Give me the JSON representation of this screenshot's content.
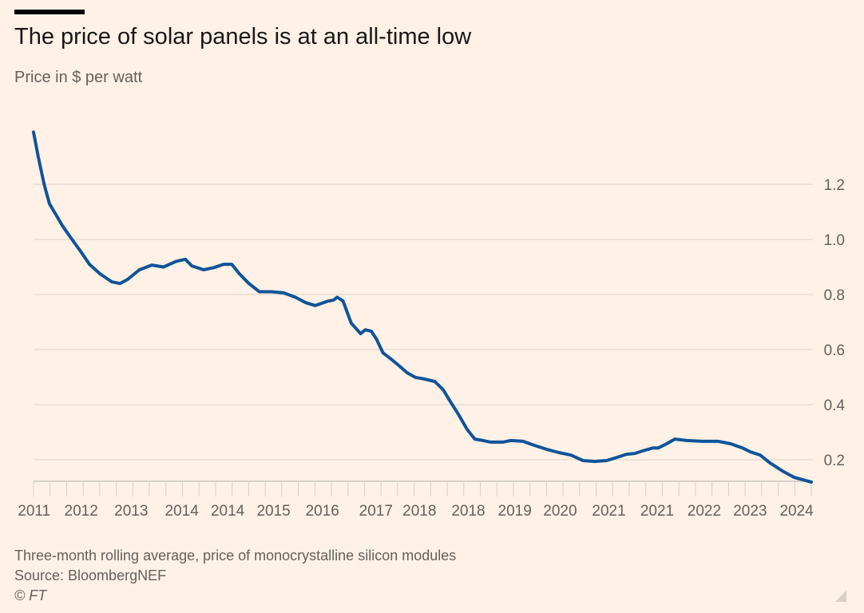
{
  "header": {
    "title": "The price of solar panels is at an all-time low",
    "subtitle": "Price in $ per watt"
  },
  "footer": {
    "note": "Three-month rolling average, price of monocrystalline silicon modules",
    "source": "Source: BloombergNEF",
    "copyright": "© FT"
  },
  "chart_data": {
    "type": "line",
    "title": "The price of solar panels is at an all-time low",
    "ylabel": "Price in $ per watt",
    "xlabel": "",
    "ylim": [
      0.12,
      1.4
    ],
    "xlim": [
      2011.0,
      2024.22
    ],
    "y_ticks": [
      {
        "value": 0.2,
        "label": "0.2"
      },
      {
        "value": 0.4,
        "label": "0.4"
      },
      {
        "value": 0.6,
        "label": "0.6"
      },
      {
        "value": 0.8,
        "label": "0.8"
      },
      {
        "value": 1.0,
        "label": "1.0"
      },
      {
        "value": 1.2,
        "label": "1.2"
      }
    ],
    "x_ticks": [
      {
        "x": 2011.01,
        "label": "2011"
      },
      {
        "x": 2011.81,
        "label": "2012"
      },
      {
        "x": 2012.66,
        "label": "2013"
      },
      {
        "x": 2013.52,
        "label": "2014"
      },
      {
        "x": 2014.3,
        "label": "2014"
      },
      {
        "x": 2015.08,
        "label": "2015"
      },
      {
        "x": 2015.91,
        "label": "2016"
      },
      {
        "x": 2016.82,
        "label": "2017"
      },
      {
        "x": 2017.56,
        "label": "2018"
      },
      {
        "x": 2018.39,
        "label": "2018"
      },
      {
        "x": 2019.18,
        "label": "2019"
      },
      {
        "x": 2019.95,
        "label": "2020"
      },
      {
        "x": 2020.78,
        "label": "2021"
      },
      {
        "x": 2021.6,
        "label": "2021"
      },
      {
        "x": 2022.4,
        "label": "2022"
      },
      {
        "x": 2023.18,
        "label": "2023"
      },
      {
        "x": 2023.97,
        "label": "2024"
      }
    ],
    "grid": true,
    "y_axis_side": "right",
    "series_color": "#0f5499",
    "series": [
      {
        "x": [
          2011.0,
          2011.08,
          2011.18,
          2011.27,
          2011.38,
          2011.49,
          2011.62,
          2011.79,
          2011.95,
          2012.13,
          2012.33,
          2012.47,
          2012.6,
          2012.8,
          2013.01,
          2013.21,
          2013.42,
          2013.58,
          2013.69,
          2013.89,
          2014.07,
          2014.23,
          2014.37,
          2014.5,
          2014.66,
          2014.84,
          2015.04,
          2015.25,
          2015.45,
          2015.63,
          2015.79,
          2015.99,
          2016.1,
          2016.16,
          2016.26,
          2016.4,
          2016.56,
          2016.64,
          2016.74,
          2016.83,
          2016.94,
          2017.08,
          2017.21,
          2017.35,
          2017.49,
          2017.65,
          2017.82,
          2017.96,
          2018.1,
          2018.23,
          2018.37,
          2018.5,
          2018.64,
          2018.77,
          2018.98,
          2019.11,
          2019.32,
          2019.52,
          2019.72,
          2019.93,
          2020.13,
          2020.34,
          2020.54,
          2020.74,
          2020.88,
          2021.08,
          2021.22,
          2021.35,
          2021.53,
          2021.62,
          2021.76,
          2021.9,
          2022.1,
          2022.37,
          2022.64,
          2022.85,
          2023.05,
          2023.18,
          2023.35,
          2023.52,
          2023.73,
          2023.93,
          2024.22
        ],
        "values": [
          1.39,
          1.3,
          1.2,
          1.13,
          1.09,
          1.05,
          1.01,
          0.96,
          0.91,
          0.875,
          0.846,
          0.84,
          0.855,
          0.89,
          0.907,
          0.9,
          0.92,
          0.928,
          0.904,
          0.89,
          0.898,
          0.91,
          0.91,
          0.875,
          0.84,
          0.81,
          0.81,
          0.806,
          0.79,
          0.77,
          0.76,
          0.775,
          0.78,
          0.79,
          0.777,
          0.696,
          0.658,
          0.672,
          0.667,
          0.638,
          0.588,
          0.565,
          0.542,
          0.516,
          0.499,
          0.493,
          0.484,
          0.455,
          0.406,
          0.362,
          0.31,
          0.275,
          0.27,
          0.264,
          0.264,
          0.27,
          0.267,
          0.252,
          0.238,
          0.226,
          0.217,
          0.197,
          0.194,
          0.197,
          0.206,
          0.22,
          0.223,
          0.232,
          0.243,
          0.243,
          0.258,
          0.275,
          0.27,
          0.267,
          0.267,
          0.258,
          0.243,
          0.229,
          0.217,
          0.188,
          0.159,
          0.136,
          0.119
        ]
      }
    ]
  }
}
